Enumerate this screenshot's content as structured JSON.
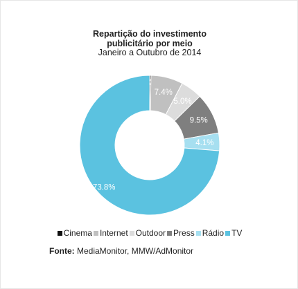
{
  "chart_data": {
    "type": "pie",
    "donut": true,
    "title_lines": [
      "Repartição do investimento",
      "publicitário por meio"
    ],
    "subtitle": "Janeiro a Outubro de 2014",
    "series": [
      {
        "name": "Cinema",
        "value": 0.3,
        "label": "0.3%",
        "color": "#111111"
      },
      {
        "name": "Internet",
        "value": 7.4,
        "label": "7.4%",
        "color": "#c0c0c0"
      },
      {
        "name": "Outdoor",
        "value": 5.0,
        "label": "5.0%",
        "color": "#dcdcdc"
      },
      {
        "name": "Press",
        "value": 9.5,
        "label": "9.5%",
        "color": "#7f7f7f"
      },
      {
        "name": "Rádio",
        "value": 4.1,
        "label": "4.1%",
        "color": "#a6dff0"
      },
      {
        "name": "TV",
        "value": 73.8,
        "label": "73.8%",
        "color": "#5bc2e0"
      }
    ],
    "legend_position": "bottom"
  },
  "source": {
    "prefix": "Fonte:",
    "text": "MediaMonitor, MMW/AdMonitor"
  }
}
